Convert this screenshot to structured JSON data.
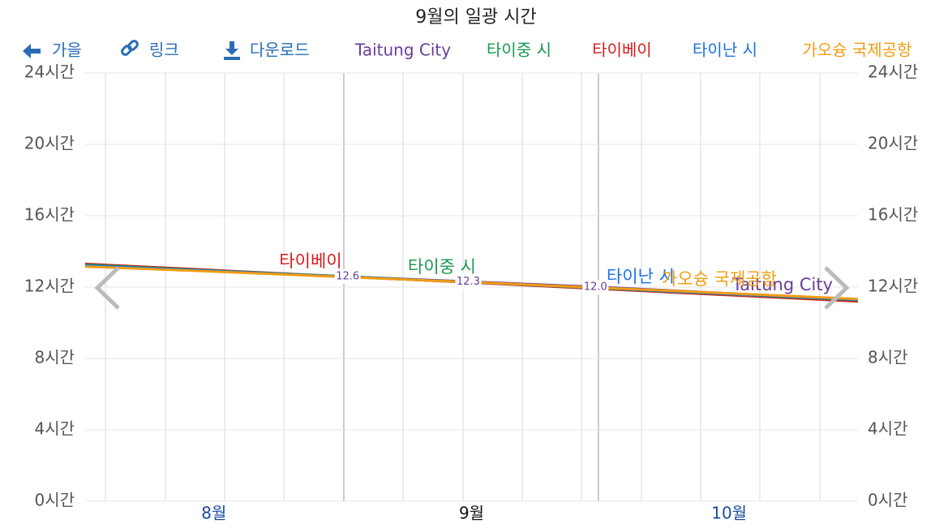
{
  "toolbar": {
    "autumn": "가을",
    "link": "링크",
    "download": "다운로드"
  },
  "chart_data": {
    "type": "line",
    "title": "9월의 일광 시간",
    "categories": [
      null,
      "8월",
      null,
      "9월",
      null,
      "10월",
      null
    ],
    "ylim": [
      0,
      24
    ],
    "yticks": [
      {
        "value": 0,
        "label": "0시간"
      },
      {
        "value": 4,
        "label": "4시간"
      },
      {
        "value": 8,
        "label": "8시간"
      },
      {
        "value": 12,
        "label": "12시간"
      },
      {
        "value": 16,
        "label": "16시간"
      },
      {
        "value": 20,
        "label": "20시간"
      },
      {
        "value": 24,
        "label": "24시간"
      }
    ],
    "grid": true,
    "series": [
      {
        "name": "Taitung City",
        "color": "#6a3d9a",
        "values": [
          13.2,
          12.9,
          12.6,
          12.3,
          12.0,
          11.65,
          11.32
        ],
        "value_labels": [
          null,
          null,
          "12.6",
          "12.3",
          "12.0",
          null,
          null
        ]
      },
      {
        "name": "타이중 시",
        "color": "#1a9850",
        "values": [
          13.25,
          12.92,
          12.6,
          12.27,
          11.93,
          11.6,
          11.27
        ]
      },
      {
        "name": "타이베이",
        "color": "#d7191c",
        "values": [
          13.3,
          12.95,
          12.6,
          12.25,
          11.9,
          11.55,
          11.2
        ]
      },
      {
        "name": "타이난 시",
        "color": "#1a73e8",
        "values": [
          13.2,
          12.9,
          12.58,
          12.27,
          11.95,
          11.62,
          11.3
        ]
      },
      {
        "name": "가오슝 국제공항",
        "color": "#f39c12",
        "values": [
          13.15,
          12.87,
          12.57,
          12.27,
          11.96,
          11.65,
          11.33
        ]
      }
    ]
  }
}
